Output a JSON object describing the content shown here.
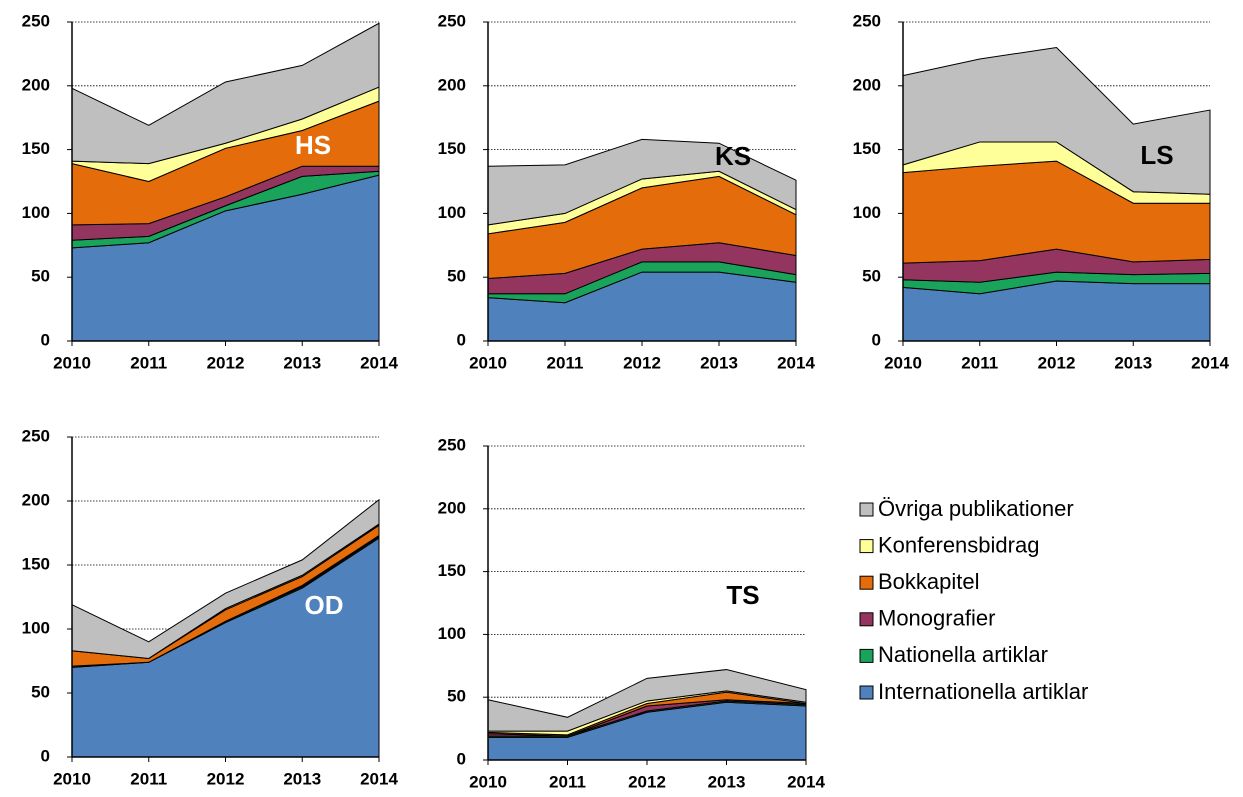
{
  "legend": {
    "items": [
      {
        "name": "Internationella artiklar",
        "color": "#4f81bd"
      },
      {
        "name": "Nationella artiklar",
        "color": "#1aa35a"
      },
      {
        "name": "Monografier",
        "color": "#943560"
      },
      {
        "name": "Bokkapitel",
        "color": "#e46c0a"
      },
      {
        "name": "Konferensbidrag",
        "color": "#ffff99"
      },
      {
        "name": "Övriga publikationer",
        "color": "#bfbfbf"
      }
    ],
    "position": "right"
  },
  "chart_data": [
    {
      "type": "area",
      "stacked": true,
      "title": "HS",
      "title_color": "#ffffff",
      "x": [
        2010,
        2011,
        2012,
        2013,
        2014
      ],
      "ylim": [
        0,
        250
      ],
      "yticks": [
        0,
        50,
        100,
        150,
        200,
        250
      ],
      "grid": true,
      "series": [
        {
          "values": [
            73,
            77,
            102,
            115,
            130
          ]
        },
        {
          "values": [
            6,
            5,
            4,
            14,
            3
          ]
        },
        {
          "values": [
            12,
            10,
            7,
            8,
            4
          ]
        },
        {
          "values": [
            48,
            33,
            38,
            28,
            51
          ]
        },
        {
          "values": [
            2,
            14,
            4,
            9,
            11
          ]
        },
        {
          "values": [
            57,
            30,
            48,
            42,
            50
          ]
        }
      ]
    },
    {
      "type": "area",
      "stacked": true,
      "title": "KS",
      "title_color": "#000000",
      "x": [
        2010,
        2011,
        2012,
        2013,
        2014
      ],
      "ylim": [
        0,
        250
      ],
      "yticks": [
        0,
        50,
        100,
        150,
        200,
        250
      ],
      "grid": true,
      "series": [
        {
          "values": [
            34,
            30,
            54,
            54,
            46
          ]
        },
        {
          "values": [
            3,
            7,
            8,
            8,
            6
          ]
        },
        {
          "values": [
            12,
            16,
            10,
            15,
            15
          ]
        },
        {
          "values": [
            35,
            40,
            48,
            52,
            32
          ]
        },
        {
          "values": [
            7,
            7,
            7,
            4,
            4
          ]
        },
        {
          "values": [
            46,
            38,
            31,
            22,
            23
          ]
        }
      ]
    },
    {
      "type": "area",
      "stacked": true,
      "title": "LS",
      "title_color": "#000000",
      "x": [
        2010,
        2011,
        2012,
        2013,
        2014
      ],
      "ylim": [
        0,
        250
      ],
      "yticks": [
        0,
        50,
        100,
        150,
        200,
        250
      ],
      "grid": true,
      "series": [
        {
          "values": [
            42,
            37,
            47,
            45,
            45
          ]
        },
        {
          "values": [
            6,
            9,
            7,
            7,
            8
          ]
        },
        {
          "values": [
            13,
            17,
            18,
            10,
            11
          ]
        },
        {
          "values": [
            71,
            74,
            69,
            46,
            44
          ]
        },
        {
          "values": [
            6,
            19,
            15,
            9,
            7
          ]
        },
        {
          "values": [
            70,
            65,
            74,
            53,
            66
          ]
        }
      ]
    },
    {
      "type": "area",
      "stacked": true,
      "title": "OD",
      "title_color": "#ffffff",
      "x": [
        2010,
        2011,
        2012,
        2013,
        2014
      ],
      "ylim": [
        0,
        250
      ],
      "yticks": [
        0,
        50,
        100,
        150,
        200,
        250
      ],
      "grid": true,
      "series": [
        {
          "values": [
            70,
            74,
            105,
            132,
            171
          ]
        },
        {
          "values": [
            1,
            0,
            1,
            1,
            1
          ]
        },
        {
          "values": [
            0,
            0,
            0,
            1,
            1
          ]
        },
        {
          "values": [
            12,
            3,
            9,
            7,
            8
          ]
        },
        {
          "values": [
            0,
            0,
            1,
            1,
            1
          ]
        },
        {
          "values": [
            36,
            13,
            12,
            12,
            19
          ]
        }
      ]
    },
    {
      "type": "area",
      "stacked": true,
      "title": "TS",
      "title_color": "#000000",
      "x": [
        2010,
        2011,
        2012,
        2013,
        2014
      ],
      "ylim": [
        0,
        250
      ],
      "yticks": [
        0,
        50,
        100,
        150,
        200,
        250
      ],
      "grid": true,
      "series": [
        {
          "values": [
            18,
            18,
            38,
            46,
            43
          ]
        },
        {
          "values": [
            1,
            1,
            1,
            1,
            1
          ]
        },
        {
          "values": [
            2,
            0,
            4,
            1,
            1
          ]
        },
        {
          "values": [
            1,
            1,
            2,
            6,
            0
          ]
        },
        {
          "values": [
            1,
            3,
            2,
            1,
            1
          ]
        },
        {
          "values": [
            25,
            11,
            18,
            17,
            10
          ]
        }
      ]
    }
  ]
}
